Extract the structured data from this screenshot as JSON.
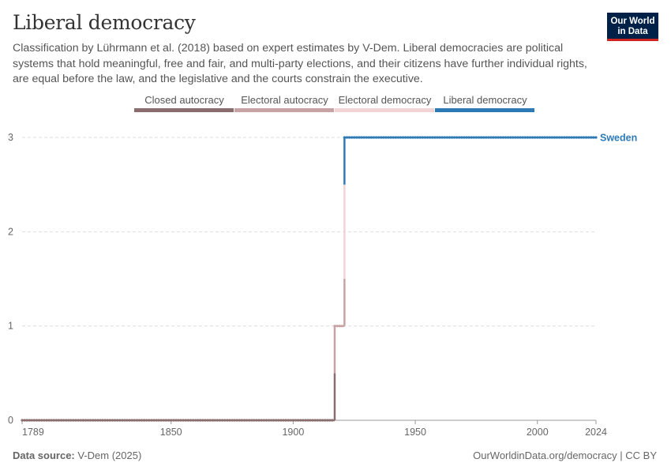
{
  "header": {
    "title": "Liberal democracy",
    "subtitle": "Classification by Lührmann et al. (2018) based on expert estimates by V-Dem. Liberal democracies are political systems that hold meaningful, free and fair, and multi-party elections, and their citizens have further individual rights, are equal before the law, and the legislative and the courts constrain the executive.",
    "logo_line1": "Our World",
    "logo_line2": "in Data"
  },
  "legend": {
    "items": [
      {
        "label": "Closed autocracy",
        "color": "#8a6e6f"
      },
      {
        "label": "Electoral autocracy",
        "color": "#c8a3a5"
      },
      {
        "label": "Electoral democracy",
        "color": "#f2d3d6"
      },
      {
        "label": "Liberal democracy",
        "color": "#2e7ab5"
      }
    ]
  },
  "footer": {
    "source_label": "Data source:",
    "source_value": "V-Dem (2025)",
    "url": "OurWorldinData.org/democracy | CC BY"
  },
  "chart_data": {
    "type": "line",
    "title": "Liberal democracy",
    "xlabel": "",
    "ylabel": "",
    "xlim": [
      1789,
      2024
    ],
    "ylim": [
      0,
      3
    ],
    "x_ticks": [
      "1789",
      "1850",
      "1900",
      "1950",
      "2000",
      "2024"
    ],
    "y_ticks": [
      "0",
      "1",
      "2",
      "3"
    ],
    "grid": "horizontal dashed",
    "series": [
      {
        "name": "Sweden",
        "color_by_value": [
          "#8a6e6f",
          "#c8a3a5",
          "#f2d3d6",
          "#2e7ab5"
        ],
        "steps": [
          {
            "from": 1789,
            "to": 1916,
            "value": 0
          },
          {
            "from": 1917,
            "to": 1920,
            "value": 1
          },
          {
            "from": 1921,
            "to": 2024,
            "value": 3
          }
        ]
      }
    ]
  }
}
